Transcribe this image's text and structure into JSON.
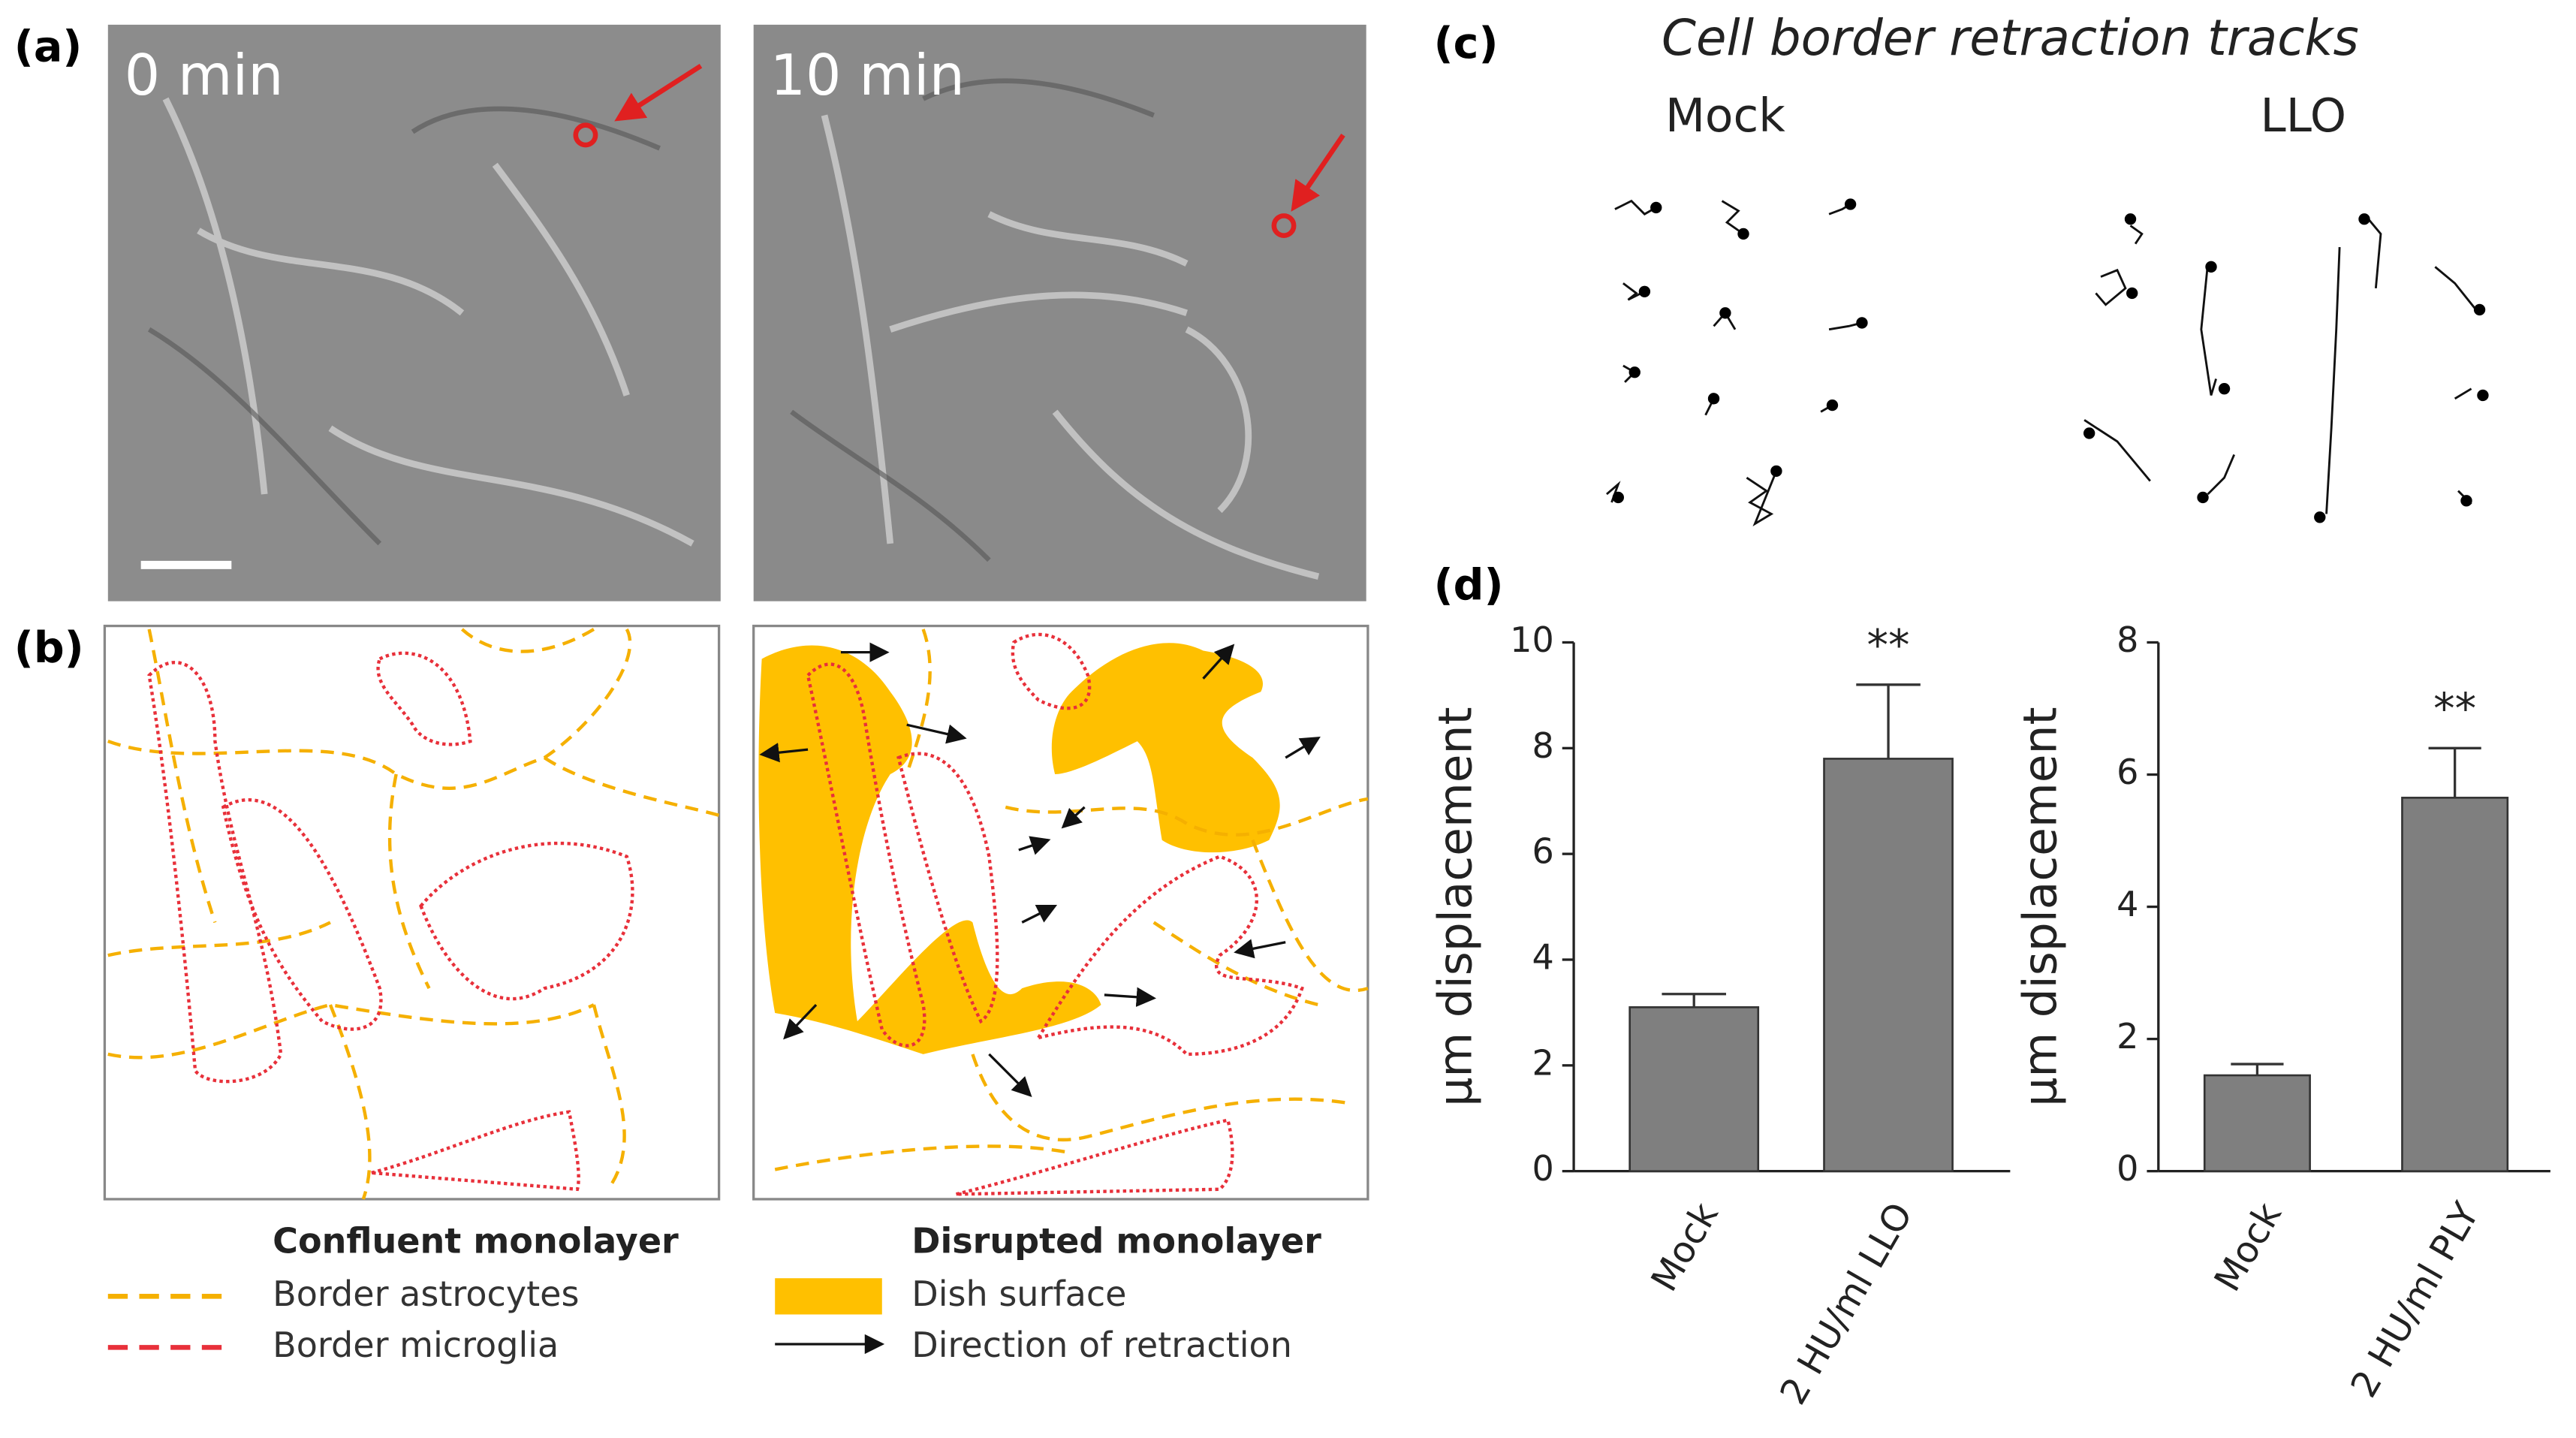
{
  "panel_labels": {
    "a": "(a)",
    "b": "(b)",
    "c": "(c)",
    "d": "(d)"
  },
  "panel_a": {
    "time_labels": [
      "0 min",
      "10 min"
    ]
  },
  "panel_b": {
    "legend_left": {
      "title": "Confluent monolayer",
      "items": [
        "Border astrocytes",
        "Border microglia"
      ]
    },
    "legend_right": {
      "title": "Disrupted monolayer",
      "items": [
        "Dish surface",
        "Direction of retraction"
      ]
    }
  },
  "panel_c": {
    "title": "Cell border retraction tracks",
    "groups": [
      "Mock",
      "LLO"
    ]
  },
  "chart_data": [
    {
      "type": "bar",
      "y_label": "μm displacement",
      "categories": [
        "Mock",
        "2 HU/ml LLO"
      ],
      "values": [
        3.1,
        7.8
      ],
      "errors": [
        0.25,
        1.4
      ],
      "significance": [
        null,
        "**"
      ],
      "color": "#7f7f7f",
      "ylim": [
        0,
        10
      ],
      "yticks": [
        0,
        2,
        4,
        6,
        8,
        10
      ]
    },
    {
      "type": "bar",
      "y_label": "μm displacement",
      "categories": [
        "Mock",
        "2 HU/ml PLY"
      ],
      "values": [
        1.45,
        5.65
      ],
      "errors": [
        0.17,
        0.75
      ],
      "significance": [
        null,
        "**"
      ],
      "color": "#7f7f7f",
      "ylim": [
        0,
        8
      ],
      "yticks": [
        0,
        2,
        4,
        6,
        8
      ]
    }
  ]
}
